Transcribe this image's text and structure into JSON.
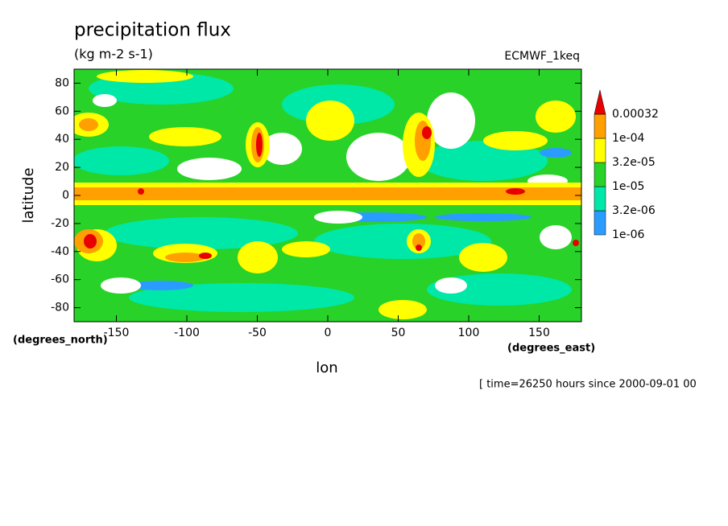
{
  "chart_data": {
    "type": "contour",
    "title": "precipitation flux",
    "subtitle": "(kg m-2 s-1)",
    "dataset": "ECMWF_1keq",
    "x_label": "lon",
    "y_label": "latitude",
    "x_units": "(degrees_east)",
    "y_units": "(degrees_north)",
    "footnote": "[ time=26250 hours since 2000-09-01 00",
    "xlim": [
      -180,
      180
    ],
    "xticks": [
      -150,
      -100,
      -50,
      0,
      50,
      100,
      150
    ],
    "ylim": [
      -90,
      90
    ],
    "yticks": [
      -80,
      -60,
      -40,
      -20,
      0,
      20,
      40,
      60,
      80
    ],
    "levels": [
      {
        "value": 1e-06,
        "label": "1e-06"
      },
      {
        "value": 3.2e-06,
        "label": "3.2e-06"
      },
      {
        "value": 1e-05,
        "label": "1e-05"
      },
      {
        "value": 3.2e-05,
        "label": "3.2e-05"
      },
      {
        "value": 0.0001,
        "label": "1e-04"
      },
      0.00032
    ],
    "level_colors": [
      "#2b9cff",
      "#00e8a8",
      "#28d228",
      "#ffff00",
      "#ffa000"
    ],
    "over_color": "#e80000"
  }
}
